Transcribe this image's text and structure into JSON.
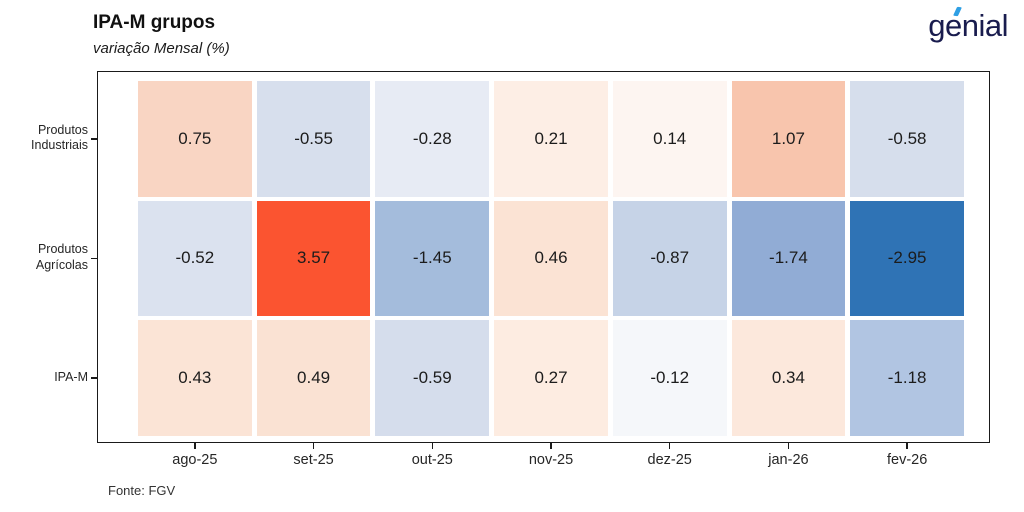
{
  "header": {
    "title": "IPA-M grupos",
    "subtitle": "variação Mensal (%)",
    "logo_text": "genial"
  },
  "footer": {
    "source": "Fonte: FGV"
  },
  "colors": {
    "logo_navy": "#191c4e",
    "logo_accent": "#2e9fe4",
    "plot_border": "#1a1a1a",
    "positive_max": "#fb5430",
    "negative_max": "#2f73b5"
  },
  "chart_data": {
    "type": "heatmap",
    "title": "IPA-M grupos",
    "subtitle": "variação Mensal (%)",
    "x_categories": [
      "ago-25",
      "set-25",
      "out-25",
      "nov-25",
      "dez-25",
      "jan-26",
      "fev-26"
    ],
    "y_categories": [
      "Produtos\nIndustriais",
      "Produtos\nAgrícolas",
      "IPA-M"
    ],
    "series": [
      {
        "name": "Produtos Industriais",
        "values": [
          0.75,
          -0.55,
          -0.28,
          0.21,
          0.14,
          1.07,
          -0.58
        ]
      },
      {
        "name": "Produtos Agrícolas",
        "values": [
          -0.52,
          3.57,
          -1.45,
          0.46,
          -0.87,
          -1.74,
          -2.95
        ]
      },
      {
        "name": "IPA-M",
        "values": [
          0.43,
          0.49,
          -0.59,
          0.27,
          -0.12,
          0.34,
          -1.18
        ]
      }
    ],
    "cell_colors": [
      [
        "#f9d5c3",
        "#d7dfed",
        "#e7ebf4",
        "#fdeee5",
        "#fdf5f1",
        "#f8c5ad",
        "#d6deec"
      ],
      [
        "#dbe2ef",
        "#fb5430",
        "#a4bcdc",
        "#fbe3d4",
        "#c6d3e7",
        "#91acd5",
        "#2f73b5"
      ],
      [
        "#fbe4d6",
        "#fae2d3",
        "#d5ddec",
        "#fdece1",
        "#f5f7fa",
        "#fce8dc",
        "#b1c5e2"
      ]
    ],
    "value_decimals": 2,
    "colormap": "diverging red(positive)-white-blue(negative), centered at 0",
    "grid": false,
    "legend": false,
    "source": "Fonte: FGV"
  }
}
